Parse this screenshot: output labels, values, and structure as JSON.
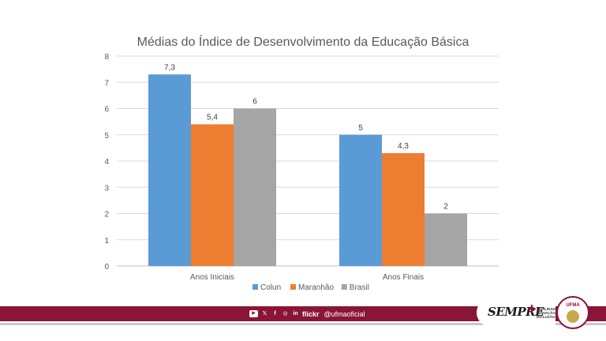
{
  "chart_data": {
    "type": "bar",
    "title": "Médias do Índice de Desenvolvimento da Educação Básica",
    "categories": [
      "Anos Iniciais",
      "Anos Finais"
    ],
    "series": [
      {
        "name": "Colun",
        "color": "#5b9bd5",
        "values": [
          7.3,
          5
        ],
        "labels": [
          "7,3",
          "5"
        ]
      },
      {
        "name": "Maranhão",
        "color": "#ed7d31",
        "values": [
          5.4,
          4.3
        ],
        "labels": [
          "5,4",
          "4,3"
        ]
      },
      {
        "name": "Brasil",
        "color": "#a5a5a5",
        "values": [
          6,
          2
        ],
        "labels": [
          "6",
          "2"
        ]
      }
    ],
    "yticks": [
      "0",
      "1",
      "2",
      "3",
      "4",
      "5",
      "6",
      "7",
      "8"
    ],
    "ylim": [
      0,
      8
    ],
    "grid": true,
    "legend": "bottom"
  },
  "footer": {
    "social_icons": [
      "youtube-icon",
      "x-icon",
      "facebook-icon",
      "instagram-icon",
      "linkedin-icon"
    ],
    "flickr_label": "flickr",
    "handle": "@ufmaoficial",
    "slogan": "SEMPRE",
    "tagline_1": "QUALIDADE",
    "tagline_2": "INOVAÇÃO",
    "tagline_3": "INCLUSÃO",
    "seal_label": "UFMA",
    "brand_color": "#8a1538"
  }
}
